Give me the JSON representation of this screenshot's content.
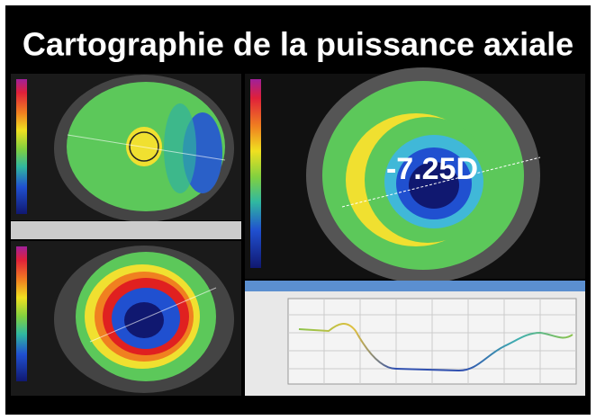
{
  "header": {
    "title": "Cartographie de la puissance axiale"
  },
  "map": {
    "label": "-7.25D"
  }
}
